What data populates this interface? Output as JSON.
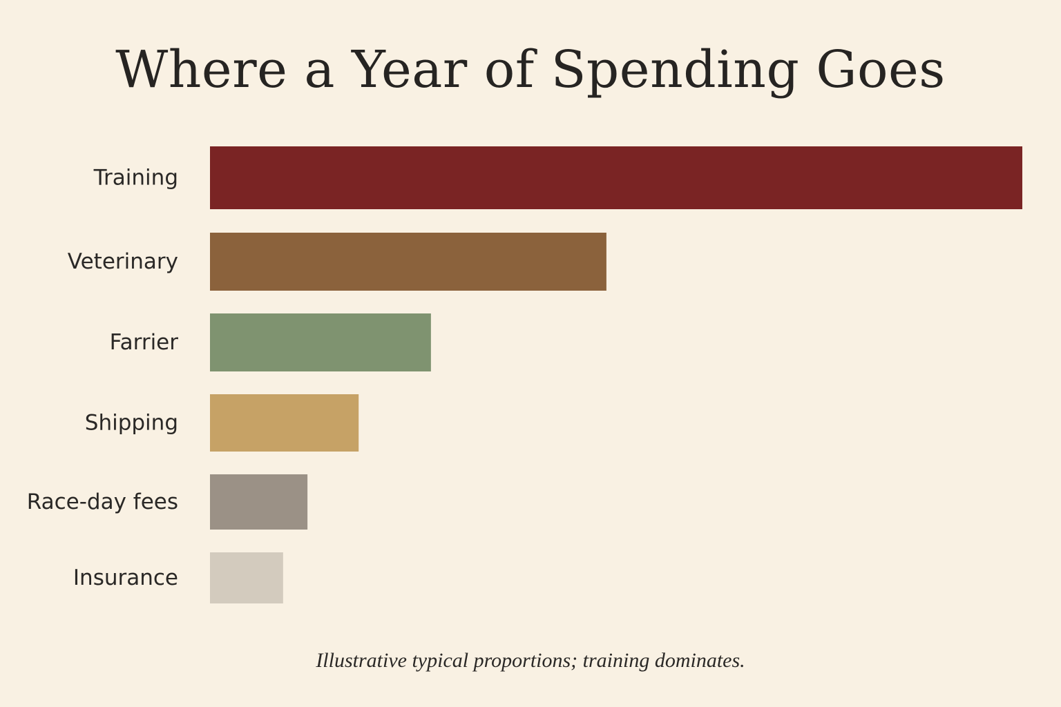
{
  "chart_data": {
    "type": "bar",
    "orientation": "horizontal",
    "title": "Where a Year of Spending Goes",
    "xlabel": "",
    "ylabel": "",
    "categories": [
      "Training",
      "Veterinary",
      "Farrier",
      "Shipping",
      "Race-day fees",
      "Insurance"
    ],
    "values": [
      100,
      48.8,
      27.2,
      18.3,
      12,
      9
    ],
    "colors": [
      "#7a2424",
      "#8b623c",
      "#7f9370",
      "#c6a266",
      "#9b9186",
      "#d3cbbe"
    ],
    "xlim": [
      0,
      100
    ],
    "grid": false,
    "legend": "none",
    "footnote": "Illustrative typical proportions; training dominates."
  }
}
